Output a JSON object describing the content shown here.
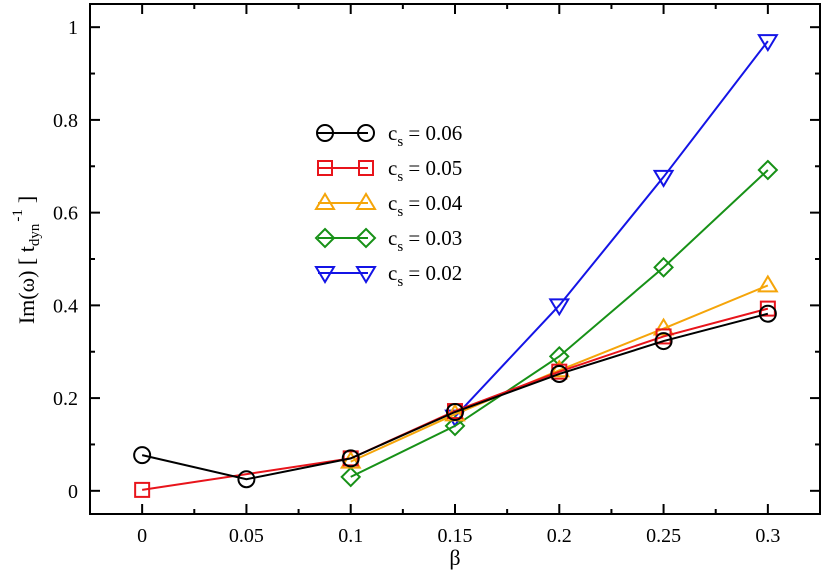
{
  "chart_data": {
    "type": "line",
    "title": "",
    "xlabel": "β",
    "ylabel": {
      "main": "Im(ω) [ t",
      "sub": "dyn",
      "sup": "-1",
      "close": "]"
    },
    "xlim": [
      -0.025,
      0.325
    ],
    "ylim": [
      -0.05,
      1.05
    ],
    "xticks": [
      0,
      0.05,
      0.1,
      0.15,
      0.2,
      0.25,
      0.3
    ],
    "xtick_labels": [
      "0",
      "0.05",
      "0.1",
      "0.15",
      "0.2",
      "0.25",
      "0.3"
    ],
    "yticks": [
      0,
      0.2,
      0.4,
      0.6,
      0.8,
      1
    ],
    "ytick_labels": [
      "0",
      "0.2",
      "0.4",
      "0.6",
      "0.8",
      "1"
    ],
    "grid": false,
    "legend_position": "center-left",
    "series": [
      {
        "label_prefix": "c",
        "label_sub": "s",
        "label_value": " = 0.06",
        "color": "#000000",
        "marker": "circle",
        "points": [
          [
            0,
            0.077
          ],
          [
            0.05,
            0.025
          ],
          [
            0.1,
            0.07
          ],
          [
            0.15,
            0.17
          ],
          [
            0.2,
            0.252
          ],
          [
            0.25,
            0.323
          ],
          [
            0.3,
            0.382
          ]
        ]
      },
      {
        "label_prefix": "c",
        "label_sub": "s",
        "label_value": " = 0.05",
        "color": "#e8141b",
        "marker": "square",
        "points": [
          [
            0,
            0.002
          ],
          [
            0.1,
            0.07
          ],
          [
            0.15,
            0.172
          ],
          [
            0.2,
            0.257
          ],
          [
            0.25,
            0.333
          ],
          [
            0.3,
            0.393
          ]
        ]
      },
      {
        "label_prefix": "c",
        "label_sub": "s",
        "label_value": " = 0.04",
        "color": "#f5a50a",
        "marker": "triangle-up",
        "points": [
          [
            0.1,
            0.063
          ],
          [
            0.15,
            0.165
          ],
          [
            0.2,
            0.26
          ],
          [
            0.25,
            0.35
          ],
          [
            0.3,
            0.443
          ]
        ]
      },
      {
        "label_prefix": "c",
        "label_sub": "s",
        "label_value": " = 0.03",
        "color": "#179117",
        "marker": "diamond",
        "points": [
          [
            0.1,
            0.03
          ],
          [
            0.15,
            0.14
          ],
          [
            0.2,
            0.29
          ],
          [
            0.25,
            0.482
          ],
          [
            0.3,
            0.692
          ]
        ]
      },
      {
        "label_prefix": "c",
        "label_sub": "s",
        "label_value": " = 0.02",
        "color": "#1414e6",
        "marker": "triangle-down",
        "points": [
          [
            0.15,
            0.16
          ],
          [
            0.2,
            0.4
          ],
          [
            0.25,
            0.677
          ],
          [
            0.3,
            0.97
          ]
        ]
      }
    ]
  }
}
